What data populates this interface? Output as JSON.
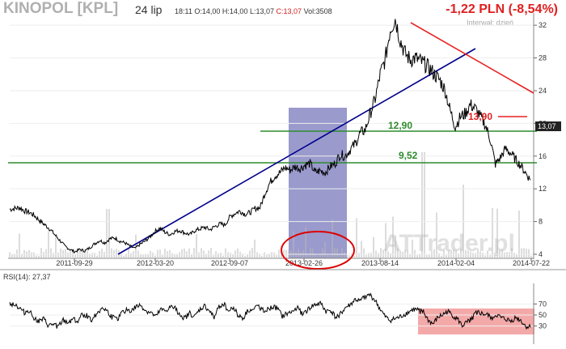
{
  "header": {
    "title": "KINOPOL [KPL]",
    "date": "24 lip",
    "time": "18:11",
    "open": "O:14,00",
    "high": "H:14,00",
    "low": "L:13,07",
    "close": "C:13,07",
    "volume": "Vol:3508",
    "change": "-1,22 PLN (-8,54%)",
    "interval": "Interwał: dzień",
    "watermark": "ATTrader.pl"
  },
  "colors": {
    "price": "#000000",
    "trend_up": "#00008b",
    "trend_down": "#e82020",
    "support": "#2e8b2e",
    "highlight": "#9a9acd",
    "circle": "#dd0000",
    "rsi_zone": "#f4a9a9"
  },
  "chart_data": [
    {
      "type": "line",
      "name": "price",
      "x_ticks": [
        "2011-09-29",
        "2012-03-20",
        "2012-09-07",
        "2013-02-26",
        "2013-08-14",
        "2014-02-04",
        "2014-07-22"
      ],
      "y_ticks": [
        4,
        8,
        12,
        16,
        20,
        24,
        28,
        32
      ],
      "last_price_label": "13,07",
      "levels": [
        {
          "label": "12,90",
          "value": 12.9
        },
        {
          "label": "9,52",
          "value": 9.52
        },
        {
          "label": "13,90",
          "value": 13.9
        }
      ],
      "series": [
        {
          "values": [
            9.5,
            9.6,
            9.7,
            9.3,
            9.1,
            8.7,
            8.1,
            7.6,
            7.1,
            6.4,
            5.7,
            5.0,
            4.6,
            4.3,
            4.6,
            4.4,
            4.8,
            5.3,
            5.7,
            5.4,
            5.9,
            6.0,
            5.6,
            5.4,
            5.0,
            4.7,
            5.2,
            5.6,
            6.1,
            6.8,
            7.2,
            6.7,
            6.4,
            6.8,
            6.9,
            6.6,
            6.4,
            6.9,
            7.1,
            7.3,
            7.0,
            7.4,
            7.7,
            7.6,
            8.6,
            9.0,
            9.3,
            8.9,
            9.1,
            9.6,
            9.7,
            11.5,
            12.8,
            13.6,
            14.0,
            14.6,
            14.3,
            14.7,
            14.5,
            14.9,
            15.1,
            14.0,
            14.2,
            14.0,
            14.7,
            15.1,
            16.2,
            16.0,
            16.8,
            17.5,
            18.8,
            19.2,
            21.2,
            23.0,
            26.0,
            27.8,
            31.5,
            32.8,
            30.2,
            28.5,
            27.8,
            28.0,
            27.6,
            27.2,
            26.6,
            25.9,
            25.2,
            24.0,
            21.5,
            19.6,
            20.8,
            21.2,
            22.3,
            21.8,
            20.8,
            19.8,
            18.0,
            15.0,
            15.8,
            16.9,
            16.4,
            15.6,
            14.9,
            14.0,
            13.07
          ]
        }
      ]
    },
    {
      "type": "line",
      "name": "RSI",
      "title": "RSI(14): 27,37",
      "y_ticks": [
        30,
        50,
        70
      ],
      "ylim": [
        0,
        100
      ],
      "series": [
        {
          "values": [
            71,
            70,
            62,
            55,
            58,
            45,
            38,
            42,
            30,
            33,
            29,
            40,
            36,
            44,
            38,
            52,
            48,
            41,
            55,
            63,
            57,
            46,
            41,
            53,
            60,
            57,
            65,
            67,
            57,
            54,
            46,
            59,
            57,
            64,
            62,
            51,
            44,
            53,
            46,
            59,
            66,
            58,
            44,
            66,
            71,
            57,
            64,
            49,
            44,
            59,
            58,
            67,
            60,
            59,
            64,
            62,
            47,
            52,
            55,
            64,
            53,
            57,
            65,
            69,
            70,
            56,
            58,
            45,
            52,
            63,
            68,
            78,
            74,
            84,
            86,
            77,
            62,
            48,
            40,
            42,
            45,
            50,
            55,
            60,
            58,
            55,
            40,
            33,
            45,
            50,
            56,
            49,
            42,
            30,
            36,
            45,
            55,
            52,
            50,
            45,
            50,
            44,
            42,
            38,
            45,
            40,
            29,
            27.37
          ]
        }
      ]
    }
  ]
}
